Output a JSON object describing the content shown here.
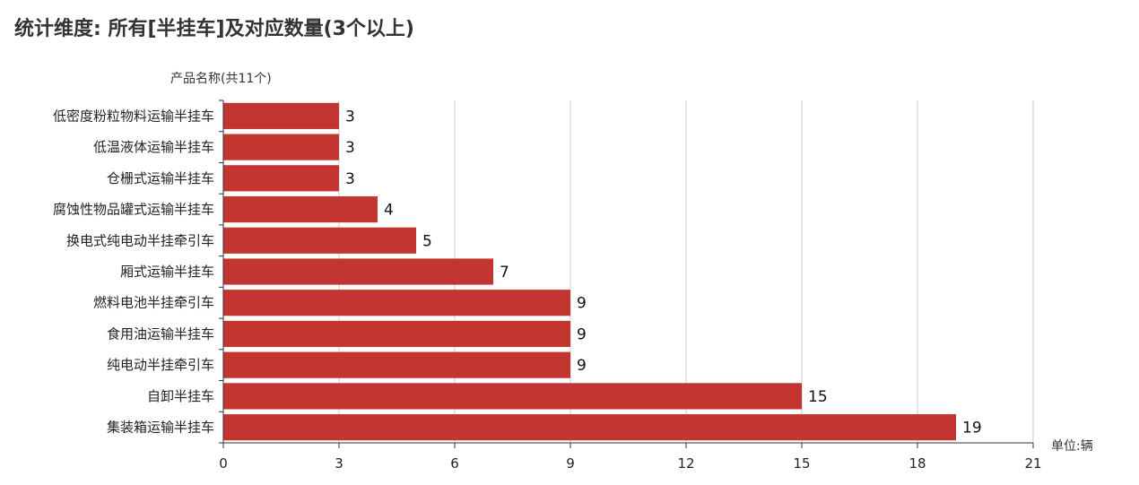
{
  "title": "统计维度: 所有[半挂车]及对应数量(3个以上)",
  "chart_data": {
    "type": "bar",
    "orientation": "horizontal",
    "title": "统计维度: 所有[半挂车]及对应数量(3个以上)",
    "ylabel": "产品名称(共11个)",
    "xlabel": "单位:辆",
    "categories": [
      "低密度粉粒物料运输半挂车",
      "低温液体运输半挂车",
      "仓栅式运输半挂车",
      "腐蚀性物品罐式运输半挂车",
      "换电式纯电动半挂牵引车",
      "厢式运输半挂车",
      "燃料电池半挂牵引车",
      "食用油运输半挂车",
      "纯电动半挂牵引车",
      "自卸半挂车",
      "集装箱运输半挂车"
    ],
    "values": [
      3,
      3,
      3,
      4,
      5,
      7,
      9,
      9,
      9,
      15,
      19
    ],
    "xlim": [
      0,
      21
    ],
    "xticks": [
      0,
      3,
      6,
      9,
      12,
      15,
      18,
      21
    ],
    "grid": true,
    "bar_color": "#c23531",
    "show_data_labels": true
  }
}
